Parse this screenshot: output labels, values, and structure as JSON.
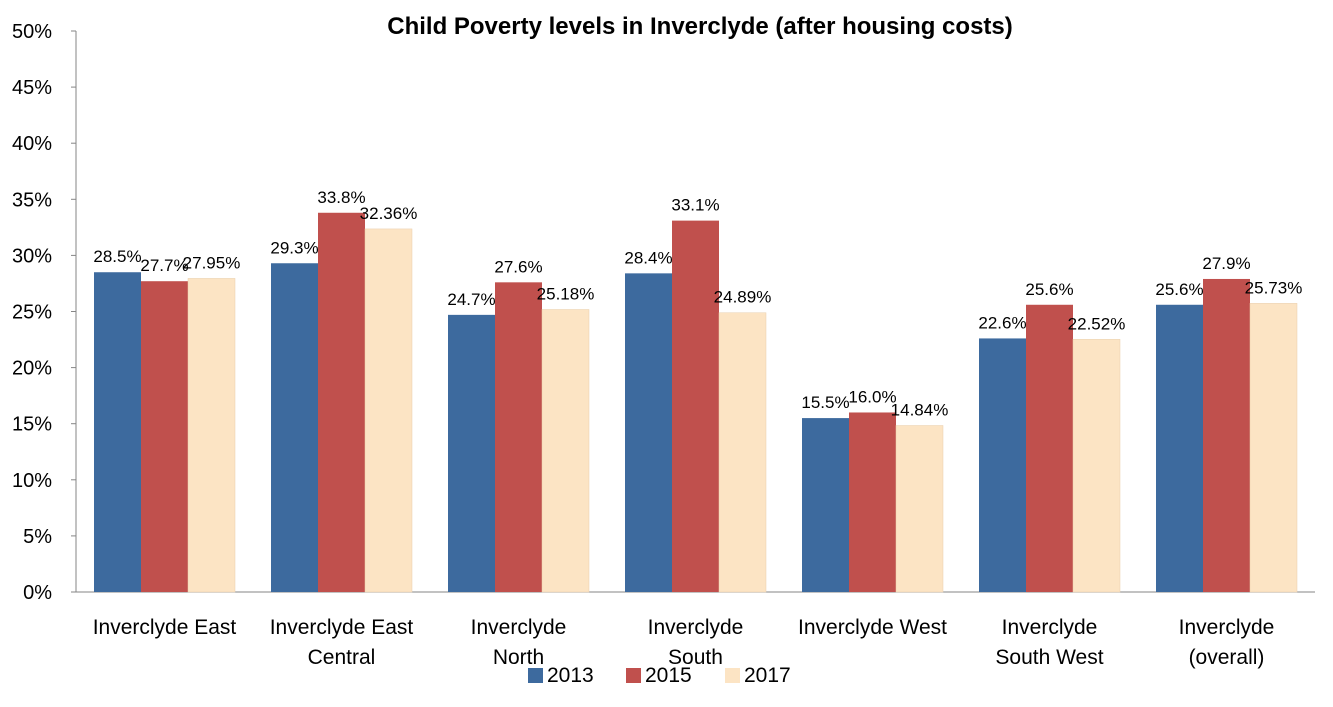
{
  "chart_data": {
    "type": "bar",
    "title": "Child Poverty levels in Inverclyde (after housing costs)",
    "xlabel": "",
    "ylabel": "",
    "ylim": [
      0,
      50
    ],
    "yticks": [
      "0%",
      "5%",
      "10%",
      "15%",
      "20%",
      "25%",
      "30%",
      "35%",
      "40%",
      "45%",
      "50%"
    ],
    "grid": false,
    "legend_position": "bottom",
    "categories": [
      [
        "Inverclyde East"
      ],
      [
        "Inverclyde East",
        "Central"
      ],
      [
        "Inverclyde",
        "North"
      ],
      [
        "Inverclyde",
        "South"
      ],
      [
        "Inverclyde West"
      ],
      [
        "Inverclyde",
        "South West"
      ],
      [
        "Inverclyde",
        "(overall)"
      ]
    ],
    "series": [
      {
        "name": "2013",
        "color": "#3D6A9E",
        "values": [
          28.5,
          29.3,
          24.7,
          28.4,
          15.5,
          22.6,
          25.6
        ],
        "labels": [
          "28.5%",
          "29.3%",
          "24.7%",
          "28.4%",
          "15.5%",
          "22.6%",
          "25.6%"
        ]
      },
      {
        "name": "2015",
        "color": "#C0504D",
        "values": [
          27.7,
          33.8,
          27.6,
          33.1,
          16.0,
          25.6,
          27.9
        ],
        "labels": [
          "27.7%",
          "33.8%",
          "27.6%",
          "33.1%",
          "16.0%",
          "25.6%",
          "27.9%"
        ]
      },
      {
        "name": "2017",
        "color": "#FCE4C4",
        "values": [
          27.95,
          32.36,
          25.18,
          24.89,
          14.84,
          22.52,
          25.73
        ],
        "labels": [
          "27.95%",
          "32.36%",
          "25.18%",
          "24.89%",
          "14.84%",
          "22.52%",
          "25.73%"
        ]
      }
    ]
  }
}
